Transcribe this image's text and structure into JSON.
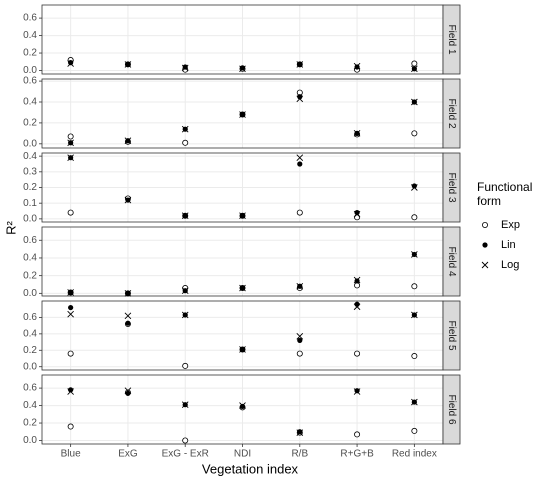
{
  "x_label": "Vegetation index",
  "y_label": "R²",
  "categories": [
    "Blue",
    "ExG",
    "ExG - ExR",
    "NDI",
    "R/B",
    "R+G+B",
    "Red index"
  ],
  "legend": {
    "title": [
      "Functional",
      "form"
    ],
    "series": [
      {
        "name": "Exp",
        "marker": "open-circle"
      },
      {
        "name": "Lin",
        "marker": "filled-circle"
      },
      {
        "name": "Log",
        "marker": "cross"
      }
    ]
  },
  "chart_data": [
    {
      "type": "scatter",
      "strip": "Field 1",
      "grid": true,
      "ylim": [
        -0.04,
        0.75
      ],
      "yticks": [
        {
          "value": 0,
          "label": "0.0"
        },
        {
          "value": 0.2,
          "label": "0.2"
        },
        {
          "value": 0.4,
          "label": "0.4"
        },
        {
          "value": 0.6,
          "label": "0.6"
        }
      ],
      "series": [
        {
          "values": [
            0.12,
            0.07,
            0.01,
            0.02,
            0.07,
            0.01,
            0.08
          ]
        },
        {
          "values": [
            0.09,
            0.07,
            0.04,
            0.03,
            0.07,
            0.04,
            0.02
          ]
        },
        {
          "values": [
            0.08,
            0.07,
            0.03,
            0.02,
            0.07,
            0.05,
            0.02
          ]
        }
      ]
    },
    {
      "type": "scatter",
      "strip": "Field 2",
      "grid": true,
      "ylim": [
        -0.04,
        0.62
      ],
      "yticks": [
        {
          "value": 0,
          "label": "0.0"
        },
        {
          "value": 0.2,
          "label": "0.2"
        },
        {
          "value": 0.4,
          "label": "0.4"
        },
        {
          "value": 0.6,
          "label": "0.6"
        }
      ],
      "series": [
        {
          "values": [
            0.07,
            0.02,
            0.01,
            0.28,
            0.49,
            0.09,
            0.1
          ]
        },
        {
          "values": [
            0.01,
            0.03,
            0.14,
            0.28,
            0.45,
            0.1,
            0.4
          ]
        },
        {
          "values": [
            0.01,
            0.03,
            0.14,
            0.28,
            0.43,
            0.1,
            0.4
          ]
        }
      ]
    },
    {
      "type": "scatter",
      "strip": "Field 3",
      "grid": true,
      "ylim": [
        -0.02,
        0.42
      ],
      "yticks": [
        {
          "value": 0,
          "label": "0.0"
        },
        {
          "value": 0.1,
          "label": "0.1"
        },
        {
          "value": 0.2,
          "label": "0.2"
        },
        {
          "value": 0.3,
          "label": "0.3"
        },
        {
          "value": 0.4,
          "label": "0.4"
        }
      ],
      "series": [
        {
          "values": [
            0.04,
            0.13,
            0.02,
            0.02,
            0.04,
            0.01,
            0.01
          ]
        },
        {
          "values": [
            0.39,
            0.12,
            0.02,
            0.02,
            0.35,
            0.04,
            0.21
          ]
        },
        {
          "values": [
            0.39,
            0.12,
            0.02,
            0.02,
            0.39,
            0.03,
            0.2
          ]
        }
      ]
    },
    {
      "type": "scatter",
      "strip": "Field 4",
      "grid": true,
      "ylim": [
        -0.03,
        0.75
      ],
      "yticks": [
        {
          "value": 0,
          "label": "0.0"
        },
        {
          "value": 0.2,
          "label": "0.2"
        },
        {
          "value": 0.4,
          "label": "0.4"
        },
        {
          "value": 0.6,
          "label": "0.6"
        }
      ],
      "series": [
        {
          "values": [
            0.01,
            0.0,
            0.06,
            0.06,
            0.06,
            0.09,
            0.08
          ]
        },
        {
          "values": [
            0.01,
            0.0,
            0.03,
            0.06,
            0.08,
            0.14,
            0.44
          ]
        },
        {
          "values": [
            0.01,
            0.0,
            0.03,
            0.06,
            0.08,
            0.15,
            0.44
          ]
        }
      ]
    },
    {
      "type": "scatter",
      "strip": "Field 5",
      "grid": true,
      "ylim": [
        -0.04,
        0.8
      ],
      "yticks": [
        {
          "value": 0,
          "label": "0.0"
        },
        {
          "value": 0.2,
          "label": "0.2"
        },
        {
          "value": 0.4,
          "label": "0.4"
        },
        {
          "value": 0.6,
          "label": "0.6"
        }
      ],
      "series": [
        {
          "values": [
            0.16,
            0.52,
            0.01,
            0.21,
            0.16,
            0.16,
            0.13
          ]
        },
        {
          "values": [
            0.72,
            0.53,
            0.63,
            0.21,
            0.32,
            0.76,
            0.63
          ]
        },
        {
          "values": [
            0.64,
            0.62,
            0.63,
            0.21,
            0.37,
            0.73,
            0.63
          ]
        }
      ]
    },
    {
      "type": "scatter",
      "strip": "Field 6",
      "grid": true,
      "ylim": [
        -0.04,
        0.75
      ],
      "yticks": [
        {
          "value": 0,
          "label": "0.0"
        },
        {
          "value": 0.2,
          "label": "0.2"
        },
        {
          "value": 0.4,
          "label": "0.4"
        },
        {
          "value": 0.6,
          "label": "0.6"
        }
      ],
      "series": [
        {
          "values": [
            0.16,
            0.55,
            0.0,
            0.38,
            0.09,
            0.07,
            0.11
          ]
        },
        {
          "values": [
            0.58,
            0.54,
            0.41,
            0.39,
            0.1,
            0.57,
            0.44
          ]
        },
        {
          "values": [
            0.56,
            0.57,
            0.41,
            0.4,
            0.09,
            0.56,
            0.44
          ]
        }
      ]
    }
  ]
}
